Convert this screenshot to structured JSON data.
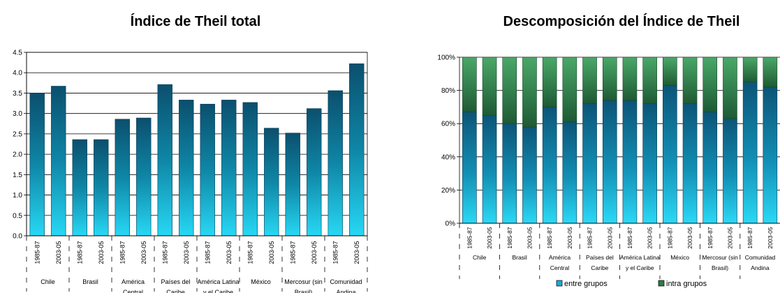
{
  "chart_data": [
    {
      "type": "bar",
      "title": "Índice de Theil total",
      "ylim": [
        0,
        4.5
      ],
      "yticks": [
        "0.0",
        "0.5",
        "1.0",
        "1.5",
        "2.0",
        "2.5",
        "3.0",
        "3.5",
        "4.0",
        "4.5"
      ],
      "grid": true,
      "periods": [
        "1985-87",
        "2003-05"
      ],
      "groups": [
        {
          "lines": [
            "Chile"
          ],
          "values": [
            3.5,
            3.67
          ]
        },
        {
          "lines": [
            "Brasil"
          ],
          "values": [
            2.36,
            2.36
          ]
        },
        {
          "lines": [
            "América",
            "Central"
          ],
          "values": [
            2.86,
            2.89
          ]
        },
        {
          "lines": [
            "Países del",
            "Caribe"
          ],
          "values": [
            3.71,
            3.33
          ]
        },
        {
          "lines": [
            "América Latina",
            "y el  Caribe"
          ],
          "values": [
            3.23,
            3.33
          ]
        },
        {
          "lines": [
            "México"
          ],
          "values": [
            3.27,
            2.64
          ]
        },
        {
          "lines": [
            "Mercosur (sin",
            "Brasil)"
          ],
          "values": [
            2.52,
            3.12
          ]
        },
        {
          "lines": [
            "Comunidad",
            "Andina"
          ],
          "values": [
            3.56,
            4.22
          ]
        }
      ]
    },
    {
      "type": "bar",
      "stacked": true,
      "percent": true,
      "title": "Descomposición del Índice de Theil",
      "ylim": [
        0,
        100
      ],
      "yticks": [
        "0%",
        "20%",
        "40%",
        "60%",
        "80%",
        "100%"
      ],
      "grid": true,
      "legend_position": "bottom",
      "periods": [
        "1985-87",
        "2003-05"
      ],
      "series": [
        {
          "name": "entre grupos",
          "color": "#1aa9d6",
          "values": [
            67,
            65,
            60,
            58,
            70,
            61,
            72,
            74,
            74,
            72,
            83,
            72,
            67,
            63,
            85,
            82
          ]
        },
        {
          "name": "intra grupos",
          "color": "#2d7a45",
          "values": [
            33,
            35,
            40,
            42,
            30,
            39,
            28,
            26,
            26,
            28,
            17,
            28,
            33,
            37,
            15,
            18
          ]
        }
      ],
      "groups": [
        {
          "lines": [
            "Chile"
          ]
        },
        {
          "lines": [
            "Brasil"
          ]
        },
        {
          "lines": [
            "América",
            "Central"
          ]
        },
        {
          "lines": [
            "Países del",
            "Caribe"
          ]
        },
        {
          "lines": [
            "América Latina",
            "y el  Caribe"
          ]
        },
        {
          "lines": [
            "México"
          ]
        },
        {
          "lines": [
            "Mercosur (sin",
            "Brasil)"
          ]
        },
        {
          "lines": [
            "Comunidad",
            "Andina"
          ]
        }
      ]
    }
  ]
}
